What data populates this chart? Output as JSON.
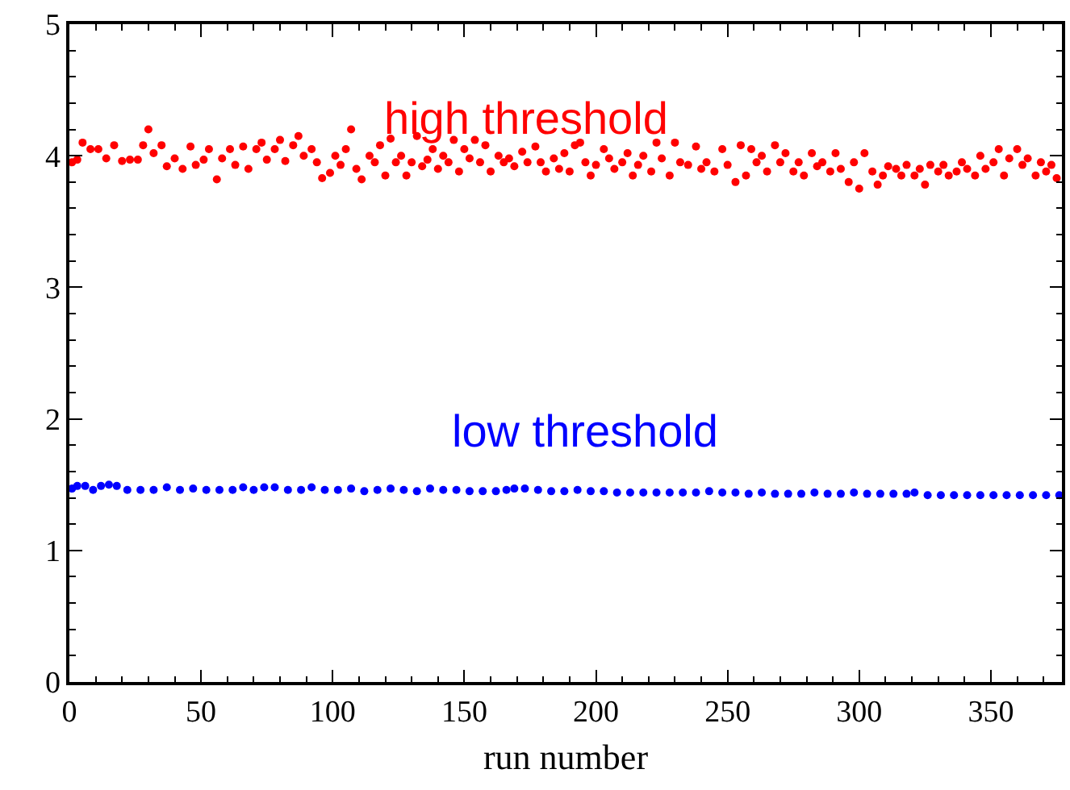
{
  "chart_data": {
    "type": "scatter",
    "xlabel": "run number",
    "annotations": [
      "high threshold",
      "low threshold"
    ],
    "xlim": [
      0,
      377
    ],
    "xticks": [
      0,
      50,
      100,
      150,
      200,
      250,
      300,
      350
    ],
    "ylim": [
      0,
      5
    ],
    "yticks": [
      0,
      1,
      2,
      3,
      4,
      5
    ],
    "marker": "circle",
    "series": [
      {
        "color": "#ff0000",
        "x": [
          1,
          3,
          5,
          8,
          11,
          14,
          17,
          20,
          23,
          26,
          28,
          30,
          32,
          35,
          37,
          40,
          43,
          46,
          48,
          51,
          53,
          56,
          58,
          61,
          63,
          66,
          68,
          71,
          73,
          75,
          78,
          80,
          82,
          85,
          87,
          89,
          92,
          94,
          96,
          99,
          101,
          103,
          105,
          107,
          109,
          111,
          114,
          116,
          118,
          120,
          122,
          124,
          126,
          128,
          130,
          132,
          134,
          136,
          138,
          140,
          142,
          144,
          146,
          148,
          150,
          152,
          154,
          156,
          158,
          160,
          163,
          165,
          167,
          169,
          172,
          174,
          177,
          179,
          181,
          184,
          186,
          188,
          190,
          192,
          194,
          196,
          198,
          200,
          203,
          205,
          207,
          210,
          212,
          214,
          216,
          218,
          221,
          223,
          225,
          228,
          230,
          232,
          235,
          238,
          240,
          242,
          245,
          248,
          250,
          253,
          255,
          257,
          259,
          261,
          263,
          265,
          268,
          270,
          272,
          275,
          277,
          279,
          282,
          284,
          286,
          289,
          291,
          293,
          296,
          298,
          300,
          302,
          305,
          307,
          309,
          311,
          314,
          316,
          318,
          321,
          323,
          325,
          327,
          330,
          332,
          334,
          337,
          339,
          341,
          344,
          346,
          348,
          351,
          353,
          355,
          357,
          360,
          362,
          364,
          367,
          369,
          371,
          373,
          375
        ],
        "values": [
          3.95,
          3.97,
          4.1,
          4.05,
          4.05,
          3.98,
          4.08,
          3.96,
          3.97,
          3.97,
          4.08,
          4.2,
          4.02,
          4.08,
          3.92,
          3.98,
          3.9,
          4.07,
          3.93,
          3.97,
          4.05,
          3.82,
          3.98,
          4.05,
          3.93,
          4.07,
          3.9,
          4.05,
          4.1,
          3.97,
          4.05,
          4.12,
          3.96,
          4.08,
          4.15,
          4.0,
          4.05,
          3.95,
          3.83,
          3.87,
          4.0,
          3.93,
          4.05,
          4.2,
          3.9,
          3.82,
          4.0,
          3.95,
          4.08,
          3.85,
          4.13,
          3.95,
          4.0,
          3.85,
          3.95,
          4.15,
          3.92,
          3.97,
          4.05,
          3.9,
          4.0,
          3.95,
          4.12,
          3.88,
          4.05,
          3.98,
          4.12,
          3.95,
          4.08,
          3.88,
          4.0,
          3.95,
          3.98,
          3.92,
          4.03,
          3.95,
          4.07,
          3.95,
          3.88,
          3.98,
          3.9,
          4.02,
          3.88,
          4.08,
          4.1,
          3.95,
          3.85,
          3.93,
          4.05,
          3.98,
          3.9,
          3.95,
          4.02,
          3.85,
          3.93,
          4.0,
          3.88,
          4.1,
          3.98,
          3.85,
          4.1,
          3.95,
          3.93,
          4.07,
          3.9,
          3.95,
          3.88,
          4.05,
          3.93,
          3.8,
          4.08,
          3.85,
          4.05,
          3.95,
          4.0,
          3.88,
          4.08,
          3.95,
          4.02,
          3.88,
          3.95,
          3.85,
          4.02,
          3.92,
          3.95,
          3.88,
          4.02,
          3.9,
          3.8,
          3.95,
          3.75,
          4.02,
          3.88,
          3.78,
          3.85,
          3.92,
          3.9,
          3.85,
          3.93,
          3.85,
          3.9,
          3.78,
          3.93,
          3.88,
          3.93,
          3.85,
          3.88,
          3.95,
          3.9,
          3.85,
          4.0,
          3.9,
          3.95,
          4.05,
          3.85,
          3.98,
          4.05,
          3.93,
          3.98,
          3.85,
          3.95,
          3.88,
          3.93,
          3.83
        ]
      },
      {
        "color": "#0000ff",
        "x": [
          1,
          3,
          6,
          9,
          12,
          15,
          18,
          22,
          27,
          32,
          37,
          42,
          47,
          52,
          57,
          62,
          66,
          70,
          74,
          78,
          83,
          88,
          92,
          97,
          102,
          107,
          112,
          117,
          122,
          127,
          132,
          137,
          142,
          147,
          152,
          157,
          162,
          166,
          169,
          173,
          178,
          183,
          188,
          193,
          198,
          203,
          208,
          213,
          218,
          223,
          228,
          233,
          238,
          243,
          248,
          253,
          258,
          263,
          268,
          273,
          278,
          283,
          288,
          293,
          298,
          303,
          308,
          313,
          318,
          321,
          326,
          331,
          336,
          341,
          346,
          351,
          356,
          361,
          366,
          371,
          376
        ],
        "values": [
          1.47,
          1.49,
          1.49,
          1.46,
          1.49,
          1.5,
          1.49,
          1.46,
          1.46,
          1.46,
          1.48,
          1.46,
          1.47,
          1.46,
          1.46,
          1.46,
          1.48,
          1.46,
          1.48,
          1.48,
          1.46,
          1.46,
          1.48,
          1.46,
          1.46,
          1.47,
          1.45,
          1.46,
          1.47,
          1.46,
          1.45,
          1.47,
          1.46,
          1.46,
          1.45,
          1.45,
          1.45,
          1.46,
          1.47,
          1.47,
          1.46,
          1.45,
          1.45,
          1.46,
          1.45,
          1.45,
          1.44,
          1.44,
          1.44,
          1.44,
          1.44,
          1.44,
          1.44,
          1.45,
          1.44,
          1.44,
          1.43,
          1.44,
          1.43,
          1.43,
          1.43,
          1.44,
          1.43,
          1.43,
          1.44,
          1.43,
          1.43,
          1.43,
          1.43,
          1.44,
          1.42,
          1.42,
          1.42,
          1.42,
          1.42,
          1.42,
          1.42,
          1.42,
          1.42,
          1.42,
          1.42
        ]
      }
    ]
  }
}
